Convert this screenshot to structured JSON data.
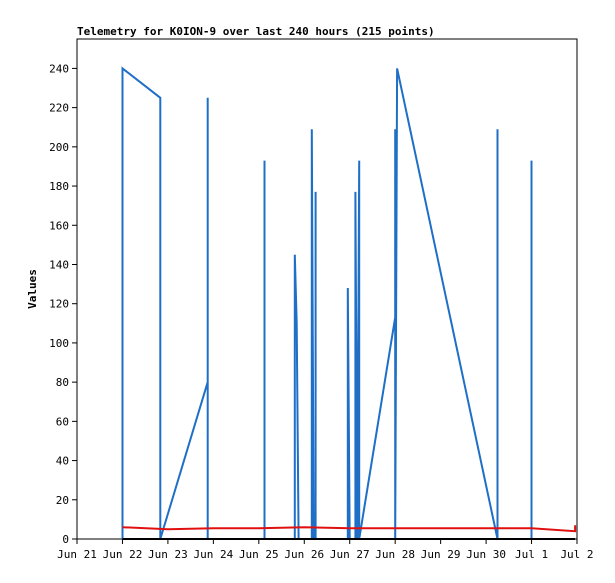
{
  "chart_data": {
    "type": "line",
    "title": "Telemetry for K0ION-9 over last 240 hours (215 points)",
    "xlabel": "",
    "ylabel": "Values",
    "ylim": [
      0,
      255
    ],
    "xlim": [
      "2025-06-21T00:00",
      "2025-07-02T00:00"
    ],
    "x_tick_labels": [
      "Jun 21",
      "Jun 22",
      "Jun 23",
      "Jun 24",
      "Jun 25",
      "Jun 26",
      "Jun 27",
      "Jun 28",
      "Jun 29",
      "Jun 30",
      "Jul 1",
      "Jul 2"
    ],
    "y_ticks": [
      0,
      20,
      40,
      60,
      80,
      100,
      120,
      140,
      160,
      180,
      200,
      220,
      240
    ],
    "grid": false,
    "legend": "none",
    "series": [
      {
        "color": "#1f6fc6",
        "points": [
          [
            "2025-06-22T00:00",
            0
          ],
          [
            "2025-06-22T00:00",
            240
          ],
          [
            "2025-06-22T20:00",
            225
          ],
          [
            "2025-06-22T20:00",
            0
          ],
          [
            "2025-06-23T21:00",
            80
          ],
          [
            "2025-06-23T21:00",
            225
          ],
          [
            "2025-06-23T21:00",
            0
          ],
          [
            "2025-06-25T03:00",
            0
          ],
          [
            "2025-06-25T03:00",
            193
          ],
          [
            "2025-06-25T03:00",
            0
          ],
          [
            "2025-06-25T19:00",
            0
          ],
          [
            "2025-06-25T19:00",
            145
          ],
          [
            "2025-06-25T20:00",
            110
          ],
          [
            "2025-06-25T21:00",
            0
          ],
          [
            "2025-06-26T04:00",
            0
          ],
          [
            "2025-06-26T04:00",
            209
          ],
          [
            "2025-06-26T05:00",
            0
          ],
          [
            "2025-06-26T06:00",
            0
          ],
          [
            "2025-06-26T06:00",
            177
          ],
          [
            "2025-06-26T06:00",
            0
          ],
          [
            "2025-06-26T23:00",
            0
          ],
          [
            "2025-06-26T23:00",
            128
          ],
          [
            "2025-06-27T00:00",
            0
          ],
          [
            "2025-06-27T03:00",
            0
          ],
          [
            "2025-06-27T03:00",
            177
          ],
          [
            "2025-06-27T04:00",
            0
          ],
          [
            "2025-06-27T05:00",
            193
          ],
          [
            "2025-06-27T05:00",
            0
          ],
          [
            "2025-06-28T00:00",
            113
          ],
          [
            "2025-06-28T00:00",
            209
          ],
          [
            "2025-06-28T00:00",
            0
          ],
          [
            "2025-06-28T01:00",
            240
          ],
          [
            "2025-06-30T06:00",
            0
          ],
          [
            "2025-06-30T06:00",
            209
          ],
          [
            "2025-06-30T06:00",
            0
          ],
          [
            "2025-07-01T00:00",
            0
          ],
          [
            "2025-07-01T00:00",
            193
          ],
          [
            "2025-07-01T00:00",
            0
          ]
        ]
      },
      {
        "color": "#e01010",
        "points": [
          [
            "2025-06-22T00:00",
            6
          ],
          [
            "2025-06-23T00:00",
            5
          ],
          [
            "2025-06-24T00:00",
            5.5
          ],
          [
            "2025-06-25T00:00",
            5.5
          ],
          [
            "2025-06-26T00:00",
            6
          ],
          [
            "2025-06-27T00:00",
            5.5
          ],
          [
            "2025-06-28T00:00",
            5.5
          ],
          [
            "2025-06-29T00:00",
            5.5
          ],
          [
            "2025-06-30T00:00",
            5.5
          ],
          [
            "2025-07-01T00:00",
            5.5
          ],
          [
            "2025-07-01T23:00",
            4
          ],
          [
            "2025-07-01T23:00",
            7
          ]
        ]
      },
      {
        "color": "#000000",
        "points": [
          [
            "2025-06-22T00:00",
            0
          ],
          [
            "2025-07-01T23:00",
            0
          ]
        ]
      }
    ]
  }
}
